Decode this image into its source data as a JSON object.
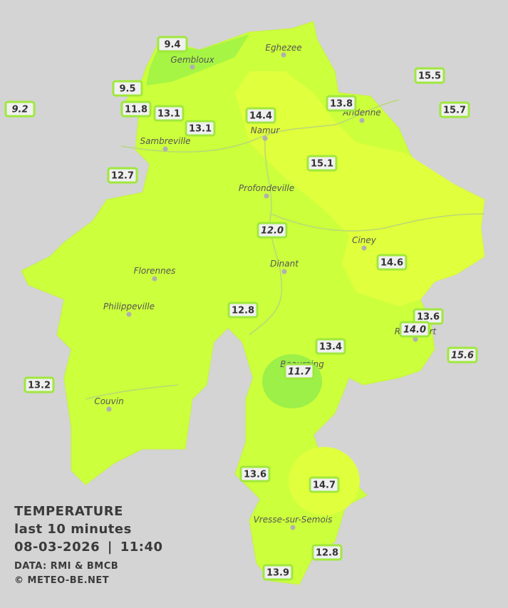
{
  "legend": {
    "title": "TEMPERATURE",
    "subtitle": "last 10 minutes",
    "datetime": "08-03-2026 | 11:40",
    "source": "DATA: RMI & BMCB",
    "copyright": "© METEO-BE.NET"
  },
  "cities": [
    "Eghezee",
    "Gembloux",
    "Andenne",
    "Namur",
    "Sambreville",
    "Profondeville",
    "Ciney",
    "Dinant",
    "Florennes",
    "Philippeville",
    "Rochefort",
    "Beauraing",
    "Couvin",
    "Vresse-sur-Semois"
  ],
  "stations": [
    {
      "value": "9.4",
      "italic": false
    },
    {
      "value": "9.5",
      "italic": false
    },
    {
      "value": "9.2",
      "italic": true
    },
    {
      "value": "11.8",
      "italic": false
    },
    {
      "value": "13.1",
      "italic": false
    },
    {
      "value": "13.1",
      "italic": false
    },
    {
      "value": "14.4",
      "italic": false
    },
    {
      "value": "13.8",
      "italic": false
    },
    {
      "value": "15.5",
      "italic": false
    },
    {
      "value": "15.7",
      "italic": false
    },
    {
      "value": "15.1",
      "italic": false
    },
    {
      "value": "12.7",
      "italic": false
    },
    {
      "value": "12.0",
      "italic": true
    },
    {
      "value": "14.6",
      "italic": false
    },
    {
      "value": "12.8",
      "italic": false
    },
    {
      "value": "13.6",
      "italic": false
    },
    {
      "value": "14.0",
      "italic": true
    },
    {
      "value": "13.4",
      "italic": false
    },
    {
      "value": "15.6",
      "italic": true
    },
    {
      "value": "11.7",
      "italic": true
    },
    {
      "value": "13.2",
      "italic": false
    },
    {
      "value": "13.6",
      "italic": false
    },
    {
      "value": "14.7",
      "italic": false
    },
    {
      "value": "12.8",
      "italic": false
    },
    {
      "value": "13.9",
      "italic": false
    }
  ]
}
